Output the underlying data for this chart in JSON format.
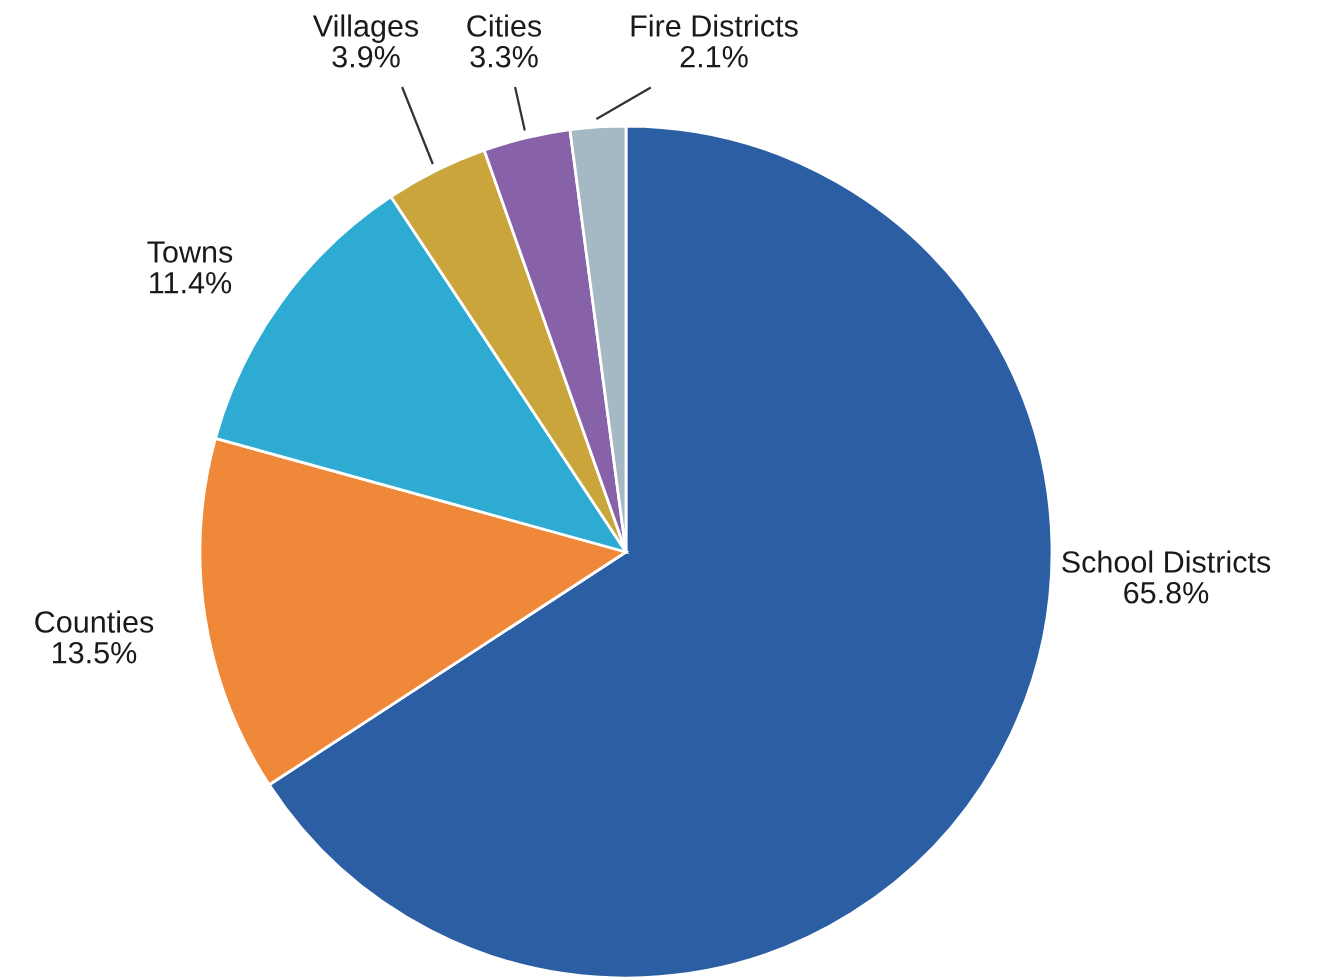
{
  "chart_data": {
    "type": "pie",
    "categories": [
      "School Districts",
      "Counties",
      "Towns",
      "Villages",
      "Cities",
      "Fire Districts"
    ],
    "values": [
      65.8,
      13.5,
      11.4,
      3.9,
      3.3,
      2.1
    ],
    "value_labels": [
      "65.8%",
      "13.5%",
      "11.4%",
      "3.9%",
      "3.3%",
      "2.1%"
    ],
    "colors": [
      "#2b5ea2",
      "#f0883a",
      "#2eabd3",
      "#c9a53b",
      "#8862a8",
      "#a4b9c3"
    ]
  }
}
